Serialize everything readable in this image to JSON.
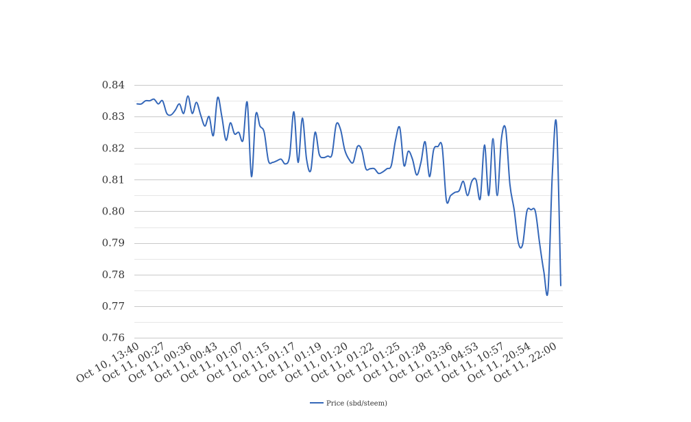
{
  "chart_data": {
    "type": "line",
    "title": "",
    "xlabel": "",
    "ylabel": "",
    "ylim": [
      0.76,
      0.84
    ],
    "y_ticks": [
      "0.76",
      "0.77",
      "0.78",
      "0.79",
      "0.80",
      "0.81",
      "0.82",
      "0.83",
      "0.84"
    ],
    "grid": "horizontal, major and minor",
    "legend_position": "bottom-center",
    "x_tick_labels": [
      "Oct 10, 13:40",
      "Oct 11, 00:27",
      "Oct 11, 00:36",
      "Oct 11, 00:43",
      "Oct 11, 01:07",
      "Oct 11, 01:15",
      "Oct 11, 01:17",
      "Oct 11, 01:19",
      "Oct 11, 01:20",
      "Oct 11, 01:22",
      "Oct 11, 01:25",
      "Oct 11, 01:28",
      "Oct 11, 03:36",
      "Oct 11, 04:53",
      "Oct 11, 10:57",
      "Oct 11, 20:54",
      "Oct 11, 22:00"
    ],
    "series": [
      {
        "name": "Price (sbd/steem)",
        "color": "#3366b8",
        "values": [
          0.834,
          0.834,
          0.835,
          0.835,
          0.8355,
          0.834,
          0.835,
          0.831,
          0.8305,
          0.832,
          0.834,
          0.831,
          0.8365,
          0.831,
          0.8345,
          0.8305,
          0.827,
          0.83,
          0.824,
          0.836,
          0.83,
          0.8225,
          0.828,
          0.8245,
          0.825,
          0.8225,
          0.8345,
          0.811,
          0.8305,
          0.827,
          0.825,
          0.816,
          0.8155,
          0.816,
          0.8165,
          0.815,
          0.8175,
          0.8315,
          0.8155,
          0.8295,
          0.8165,
          0.813,
          0.825,
          0.818,
          0.817,
          0.8175,
          0.818,
          0.8275,
          0.826,
          0.8195,
          0.8165,
          0.8155,
          0.8205,
          0.8195,
          0.8135,
          0.8135,
          0.8135,
          0.812,
          0.8125,
          0.8135,
          0.8145,
          0.8225,
          0.8265,
          0.8145,
          0.819,
          0.8165,
          0.8115,
          0.8155,
          0.822,
          0.811,
          0.8195,
          0.8205,
          0.8205,
          0.8035,
          0.805,
          0.806,
          0.8065,
          0.8095,
          0.805,
          0.8095,
          0.81,
          0.804,
          0.821,
          0.805,
          0.823,
          0.805,
          0.823,
          0.826,
          0.8085,
          0.8005,
          0.79,
          0.7895,
          0.8,
          0.8005,
          0.8,
          0.79,
          0.781,
          0.775,
          0.8115,
          0.8275,
          0.7765
        ]
      }
    ]
  }
}
